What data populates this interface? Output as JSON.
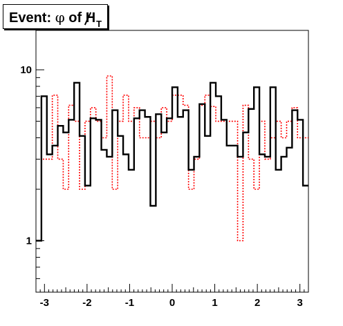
{
  "title": {
    "prefix": "Event: ",
    "symbol": "φ",
    "middle": " of ",
    "met": "H",
    "sub": "T"
  },
  "chart_data": {
    "type": "histogram",
    "xlim": [
      -3.2,
      3.2
    ],
    "ylim": [
      0.5,
      17
    ],
    "ylog": true,
    "x_ticks": [
      -3,
      -2,
      -1,
      0,
      1,
      2,
      3
    ],
    "x_tick_labels": [
      "-3",
      "-2",
      "-1",
      "0",
      "1",
      "2",
      "3"
    ],
    "y_ticks_labeled": [
      1,
      10
    ],
    "y_tick_labels": [
      "1",
      "10"
    ],
    "bins": 50,
    "series": [
      {
        "color": "#000000",
        "style": "solid",
        "values": [
          1,
          7,
          3.2,
          3.6,
          4.7,
          4.3,
          5.1,
          8.4,
          4.1,
          2.1,
          5.2,
          5.1,
          3.4,
          3.1,
          5.8,
          4.1,
          3.2,
          2.6,
          5.2,
          5.8,
          5.3,
          1.6,
          5.5,
          4.3,
          5.2,
          7.9,
          5.3,
          5.8,
          2.6,
          3.1,
          6.3,
          4.1,
          8.4,
          7.0,
          5.1,
          3.6,
          3.6,
          3.1,
          4.3,
          5.9,
          7.9,
          3.2,
          3.1,
          7.9,
          2.6,
          3.1,
          3.5,
          5.8,
          5.1,
          2.1
        ]
      },
      {
        "color": "#ff0000",
        "style": "dotted",
        "values": [
          1,
          3,
          3,
          7.1,
          3,
          2,
          6.2,
          5,
          2,
          5,
          6,
          5,
          4,
          9.2,
          2,
          5,
          7.1,
          5,
          6,
          4,
          4,
          5,
          4,
          6,
          5,
          7.1,
          7.1,
          6.2,
          2,
          3,
          6.2,
          7.1,
          6.1,
          5,
          5,
          5,
          5,
          1,
          6.2,
          3,
          2,
          5,
          3,
          4,
          5,
          4,
          5,
          6,
          4,
          4
        ]
      }
    ]
  }
}
